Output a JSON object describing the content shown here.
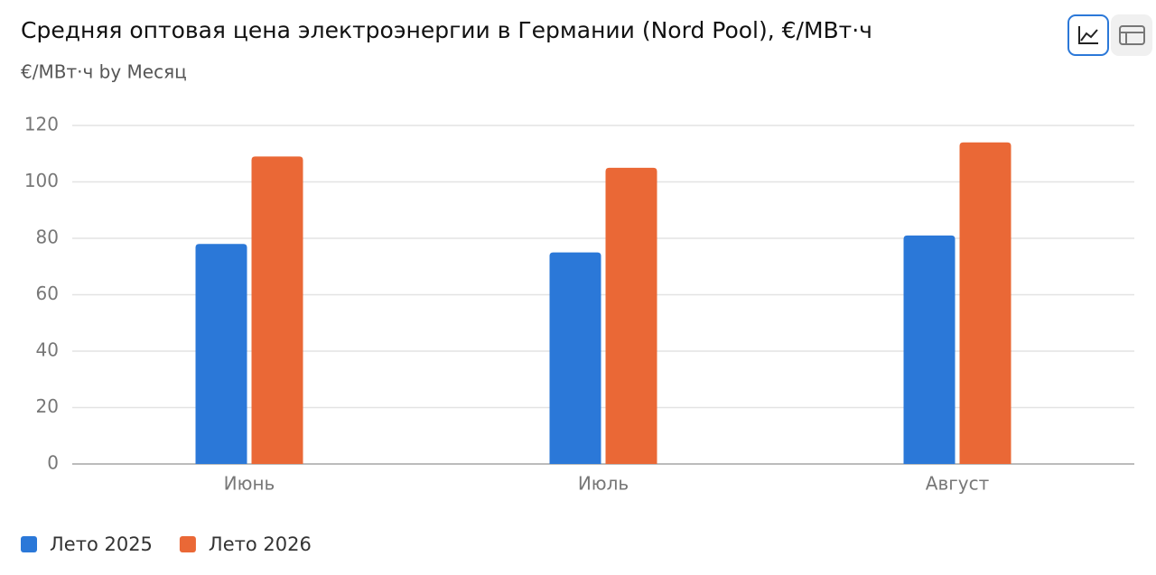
{
  "chart_data": {
    "type": "bar",
    "title": "Средняя оптовая цена электроэнергии в Германии (Nord Pool), €/МВт·ч",
    "subtitle": "€/МВт·ч by Месяц",
    "categories": [
      "Июнь",
      "Июль",
      "Август"
    ],
    "series": [
      {
        "name": "Лето 2025",
        "color": "#2b78d8",
        "values": [
          78,
          75,
          81
        ]
      },
      {
        "name": "Лето 2026",
        "color": "#ea6836",
        "values": [
          109,
          105,
          114
        ]
      }
    ],
    "ylim": [
      0,
      120
    ],
    "yticks": [
      0,
      20,
      40,
      60,
      80,
      100,
      120
    ],
    "grid": true
  }
}
